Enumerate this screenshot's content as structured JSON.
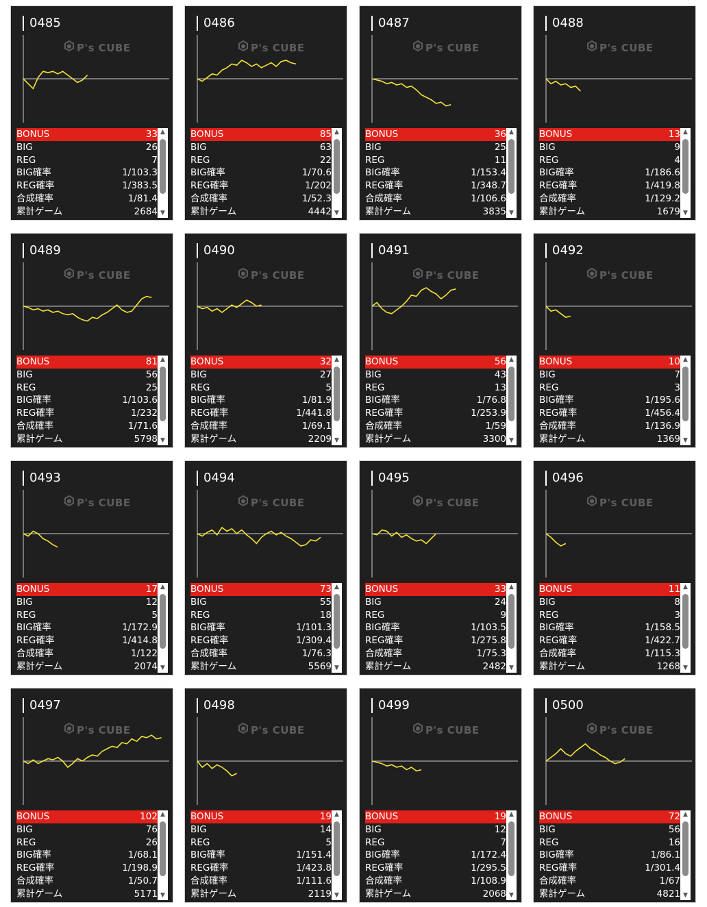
{
  "colors": {
    "panel": "#1f1f1f",
    "bonus_bar": "#e0211b",
    "line": "#f5e33b",
    "text": "#ffffff"
  },
  "watermark": {
    "text": "P's CUBE"
  },
  "labels": {
    "bonus": "BONUS",
    "big": "BIG",
    "reg": "REG",
    "big_prob": "BIG確率",
    "reg_prob": "REG確率",
    "combined_prob": "合成確率",
    "total_games": "累計ゲーム"
  },
  "machines": [
    {
      "id": "0485",
      "bonus": "33",
      "big": "26",
      "reg": "7",
      "big_prob": "1/103.3",
      "reg_prob": "1/383.5",
      "combined_prob": "1/81.4",
      "total_games": "2684",
      "graph": [
        0,
        -8,
        -16,
        2,
        12,
        10,
        12,
        8,
        12,
        6,
        0,
        -6,
        -2,
        6
      ]
    },
    {
      "id": "0486",
      "bonus": "85",
      "big": "63",
      "reg": "22",
      "big_prob": "1/70.6",
      "reg_prob": "1/202",
      "combined_prob": "1/52.3",
      "total_games": "4442",
      "graph": [
        0,
        -4,
        2,
        8,
        6,
        14,
        18,
        24,
        22,
        30,
        26,
        20,
        24,
        18,
        22,
        26,
        20,
        28,
        30,
        26,
        24
      ]
    },
    {
      "id": "0487",
      "bonus": "36",
      "big": "25",
      "reg": "11",
      "big_prob": "1/153.4",
      "reg_prob": "1/348.7",
      "combined_prob": "1/106.6",
      "total_games": "3835",
      "graph": [
        0,
        -2,
        -4,
        -8,
        -6,
        -10,
        -8,
        -14,
        -12,
        -18,
        -26,
        -30,
        -34,
        -40,
        -38,
        -44,
        -42
      ]
    },
    {
      "id": "0488",
      "bonus": "13",
      "big": "9",
      "reg": "4",
      "big_prob": "1/186.6",
      "reg_prob": "1/419.8",
      "combined_prob": "1/129.2",
      "total_games": "1679",
      "graph": [
        0,
        -8,
        -4,
        -10,
        -8,
        -14,
        -12,
        -20
      ]
    },
    {
      "id": "0489",
      "bonus": "81",
      "big": "56",
      "reg": "25",
      "big_prob": "1/103.6",
      "reg_prob": "1/232",
      "combined_prob": "1/71.6",
      "total_games": "5798",
      "graph": [
        0,
        -2,
        -6,
        -4,
        -8,
        -6,
        -10,
        -8,
        -12,
        -14,
        -12,
        -18,
        -22,
        -24,
        -18,
        -20,
        -14,
        -10,
        -4,
        2,
        -6,
        -10,
        -8,
        2,
        12,
        16,
        14
      ]
    },
    {
      "id": "0490",
      "bonus": "32",
      "big": "27",
      "reg": "5",
      "big_prob": "1/81.9",
      "reg_prob": "1/441.8",
      "combined_prob": "1/69.1",
      "total_games": "2209",
      "graph": [
        0,
        -4,
        -2,
        -8,
        -4,
        -10,
        -4,
        2,
        -2,
        4,
        10,
        6,
        0,
        2
      ]
    },
    {
      "id": "0491",
      "bonus": "56",
      "big": "43",
      "reg": "13",
      "big_prob": "1/76.8",
      "reg_prob": "1/253.9",
      "combined_prob": "1/59",
      "total_games": "3300",
      "graph": [
        0,
        6,
        -4,
        -10,
        -12,
        -6,
        0,
        8,
        18,
        16,
        26,
        30,
        24,
        20,
        12,
        18,
        26,
        28
      ]
    },
    {
      "id": "0492",
      "bonus": "10",
      "big": "7",
      "reg": "3",
      "big_prob": "1/195.6",
      "reg_prob": "1/456.4",
      "combined_prob": "1/136.9",
      "total_games": "1369",
      "graph": [
        0,
        -8,
        -6,
        -12,
        -18,
        -16
      ]
    },
    {
      "id": "0493",
      "bonus": "17",
      "big": "12",
      "reg": "5",
      "big_prob": "1/172.9",
      "reg_prob": "1/414.8",
      "combined_prob": "1/122",
      "total_games": "2074",
      "graph": [
        0,
        -4,
        4,
        0,
        -8,
        -12,
        -18,
        -22
      ]
    },
    {
      "id": "0494",
      "bonus": "73",
      "big": "55",
      "reg": "18",
      "big_prob": "1/101.3",
      "reg_prob": "1/309.4",
      "combined_prob": "1/76.3",
      "total_games": "5569",
      "graph": [
        0,
        -4,
        2,
        6,
        -2,
        10,
        4,
        8,
        0,
        6,
        -2,
        -8,
        -16,
        -6,
        0,
        4,
        -2,
        2,
        -4,
        -8,
        -14,
        -20,
        -18,
        -10,
        -12,
        -6
      ]
    },
    {
      "id": "0495",
      "bonus": "33",
      "big": "24",
      "reg": "9",
      "big_prob": "1/103.5",
      "reg_prob": "1/275.8",
      "combined_prob": "1/75.3",
      "total_games": "2482",
      "graph": [
        0,
        -2,
        6,
        4,
        -4,
        2,
        -6,
        -2,
        -8,
        -12,
        -10,
        -16,
        -8,
        0
      ]
    },
    {
      "id": "0496",
      "bonus": "11",
      "big": "8",
      "reg": "3",
      "big_prob": "1/158.5",
      "reg_prob": "1/422.7",
      "combined_prob": "1/115.3",
      "total_games": "1268",
      "graph": [
        0,
        -6,
        -14,
        -20,
        -16
      ]
    },
    {
      "id": "0497",
      "bonus": "102",
      "big": "76",
      "reg": "26",
      "big_prob": "1/68.1",
      "reg_prob": "1/198.9",
      "combined_prob": "1/50.7",
      "total_games": "5171",
      "graph": [
        0,
        -4,
        2,
        -4,
        0,
        4,
        2,
        6,
        0,
        -10,
        -4,
        4,
        0,
        6,
        10,
        8,
        16,
        20,
        24,
        22,
        30,
        28,
        36,
        32,
        40,
        38,
        42,
        36,
        38
      ]
    },
    {
      "id": "0498",
      "bonus": "19",
      "big": "14",
      "reg": "5",
      "big_prob": "1/151.4",
      "reg_prob": "1/423.8",
      "combined_prob": "1/111.6",
      "total_games": "2119",
      "graph": [
        0,
        -10,
        -4,
        -12,
        -6,
        -10,
        -16,
        -24,
        -20
      ]
    },
    {
      "id": "0499",
      "bonus": "19",
      "big": "12",
      "reg": "7",
      "big_prob": "1/172.4",
      "reg_prob": "1/295.5",
      "combined_prob": "1/108.9",
      "total_games": "2068",
      "graph": [
        0,
        -2,
        -4,
        -8,
        -6,
        -10,
        -8,
        -14,
        -10,
        -16,
        -14
      ]
    },
    {
      "id": "0500",
      "bonus": "72",
      "big": "56",
      "reg": "16",
      "big_prob": "1/86.1",
      "reg_prob": "1/301.4",
      "combined_prob": "1/67",
      "total_games": "4821",
      "graph": [
        0,
        6,
        12,
        20,
        12,
        8,
        16,
        22,
        28,
        20,
        16,
        10,
        6,
        0,
        -4,
        -2,
        4
      ]
    }
  ]
}
